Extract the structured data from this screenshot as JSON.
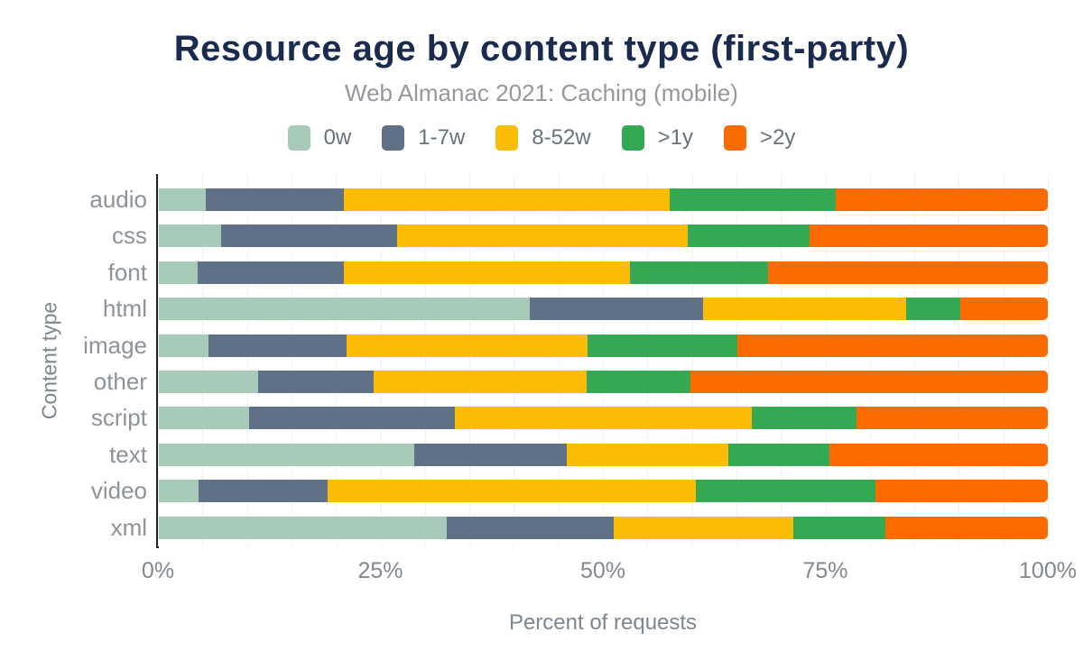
{
  "chart": {
    "title": "Resource age by content type (first-party)",
    "subtitle": "Web Almanac 2021: Caching (mobile)",
    "xlabel": "Percent of requests",
    "ylabel": "Content type"
  },
  "chart_data": {
    "type": "bar",
    "orientation": "horizontal",
    "stacked": true,
    "title": "Resource age by content type (first-party)",
    "subtitle": "Web Almanac 2021: Caching (mobile)",
    "xlabel": "Percent of requests",
    "ylabel": "Content type",
    "xlim": [
      0,
      100
    ],
    "x_ticks": [
      "0%",
      "25%",
      "50%",
      "75%",
      "100%"
    ],
    "x_tick_values": [
      0,
      25,
      50,
      75,
      100
    ],
    "gridline_step": 5,
    "grid": true,
    "legend_position": "top",
    "categories": [
      "audio",
      "css",
      "font",
      "html",
      "image",
      "other",
      "script",
      "text",
      "video",
      "xml"
    ],
    "series": [
      {
        "name": "0w",
        "color": "#a8cab9",
        "values": [
          5.3,
          7.0,
          4.4,
          41.7,
          5.6,
          11.2,
          10.1,
          28.7,
          4.5,
          32.4
        ]
      },
      {
        "name": "1-7w",
        "color": "#5f7087",
        "values": [
          15.5,
          19.8,
          16.4,
          19.5,
          15.5,
          12.9,
          23.2,
          17.1,
          14.5,
          18.7
        ]
      },
      {
        "name": "8-52w",
        "color": "#fabc04",
        "values": [
          36.6,
          32.6,
          32.1,
          22.8,
          27.1,
          24.0,
          33.3,
          18.2,
          41.3,
          20.2
        ]
      },
      {
        "name": ">1y",
        "color": "#34a853",
        "values": [
          18.7,
          13.7,
          15.6,
          6.1,
          16.8,
          11.6,
          11.8,
          11.4,
          20.2,
          10.3
        ]
      },
      {
        "name": ">2y",
        "color": "#fb6b00",
        "values": [
          23.9,
          26.9,
          31.5,
          9.9,
          35.0,
          40.3,
          21.6,
          24.6,
          19.5,
          18.4
        ]
      }
    ],
    "colors": {
      "background": "#ffffff",
      "title": "#1b2b4e",
      "subtitle": "#95989c",
      "axis_line": "#22262b",
      "gridline": "#eef0f1",
      "tick_label": "#82888e",
      "category_label": "#8d9399",
      "axis_title": "#7e868e",
      "legend_label": "#68727d"
    }
  }
}
